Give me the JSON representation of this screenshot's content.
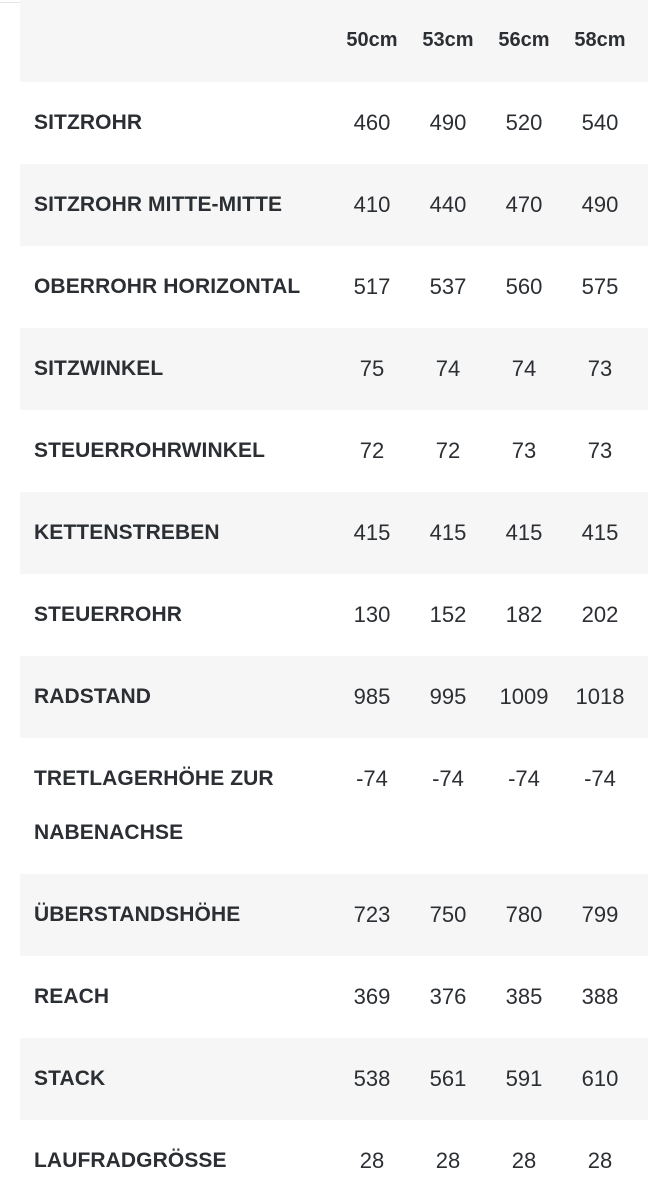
{
  "table": {
    "sizes": [
      "50cm",
      "53cm",
      "56cm",
      "58cm"
    ],
    "rows": [
      {
        "label": "SITZROHR",
        "values": [
          "460",
          "490",
          "520",
          "540"
        ]
      },
      {
        "label": "SITZROHR MITTE-MITTE",
        "values": [
          "410",
          "440",
          "470",
          "490"
        ]
      },
      {
        "label": "OBERROHR HORIZONTAL",
        "values": [
          "517",
          "537",
          "560",
          "575"
        ]
      },
      {
        "label": "SITZWINKEL",
        "values": [
          "75",
          "74",
          "74",
          "73"
        ]
      },
      {
        "label": "STEUERROHRWINKEL",
        "values": [
          "72",
          "72",
          "73",
          "73"
        ]
      },
      {
        "label": "KETTENSTREBEN",
        "values": [
          "415",
          "415",
          "415",
          "415"
        ]
      },
      {
        "label": "STEUERROHR",
        "values": [
          "130",
          "152",
          "182",
          "202"
        ]
      },
      {
        "label": "RADSTAND",
        "values": [
          "985",
          "995",
          "1009",
          "1018"
        ]
      },
      {
        "label_line1": "TRETLAGERHÖHE ZUR",
        "label_line2": "NABENACHSE",
        "values": [
          "-74",
          "-74",
          "-74",
          "-74"
        ]
      },
      {
        "label": "ÜBERSTANDSHÖHE",
        "values": [
          "723",
          "750",
          "780",
          "799"
        ]
      },
      {
        "label": "REACH",
        "values": [
          "369",
          "376",
          "385",
          "388"
        ]
      },
      {
        "label": "STACK",
        "values": [
          "538",
          "561",
          "591",
          "610"
        ]
      },
      {
        "label": "LAUFRADGRÖSSE",
        "values": [
          "28",
          "28",
          "28",
          "28"
        ]
      }
    ]
  }
}
